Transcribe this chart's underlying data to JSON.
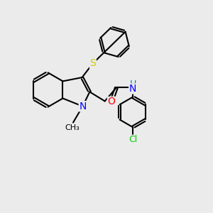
{
  "bg_color": "#ebebeb",
  "bond_color": "#000000",
  "bond_width": 1.5,
  "atom_colors": {
    "N": "#0000ff",
    "O": "#ff0000",
    "S": "#cccc00",
    "Cl": "#00cc00",
    "H": "#008080",
    "C": "#000000"
  },
  "font_size": 9,
  "xlim": [
    0,
    10
  ],
  "ylim": [
    0,
    10
  ]
}
